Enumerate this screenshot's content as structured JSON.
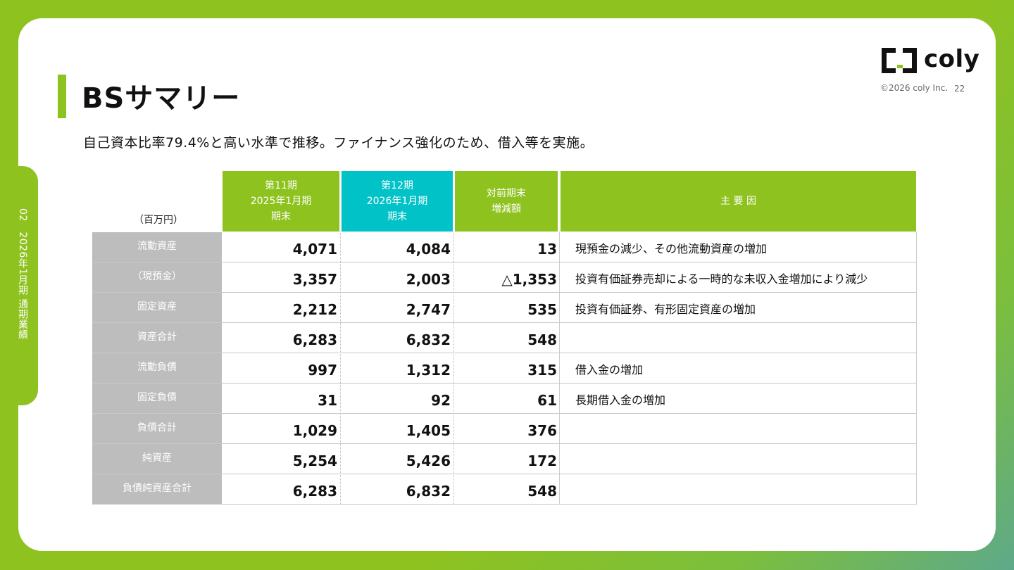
{
  "header": {
    "title": "BSサマリー",
    "subtitle": "自己資本比率79.4%と高い水準で推移。ファイナンス強化のため、借入等を実施。"
  },
  "side_label": "02　2026年1月期 通期業績",
  "brand": {
    "logo_text": "coly",
    "copyright": "©2026 coly Inc.",
    "page_number": "22"
  },
  "colors": {
    "accent_green": "#8ec21f",
    "accent_teal": "#00c2c7",
    "row_label_gray": "#bdbdbd"
  },
  "table": {
    "unit_label": "（百万円）",
    "headers": {
      "period11": [
        "第11期",
        "2025年1月期",
        "期末"
      ],
      "period12": [
        "第12期",
        "2026年1月期",
        "期末"
      ],
      "change": [
        "対前期末",
        "増減額"
      ],
      "reason": "主 要 因"
    },
    "rows": [
      {
        "label": "流動資産",
        "p11": "4,071",
        "p12": "4,084",
        "change": "13",
        "reason": "現預金の減少、その他流動資産の増加"
      },
      {
        "label": "（現預金）",
        "p11": "3,357",
        "p12": "2,003",
        "change": "△1,353",
        "reason": "投資有価証券売却による一時的な未収入金増加により減少"
      },
      {
        "label": "固定資産",
        "p11": "2,212",
        "p12": "2,747",
        "change": "535",
        "reason": "投資有価証券、有形固定資産の増加"
      },
      {
        "label": "資産合計",
        "p11": "6,283",
        "p12": "6,832",
        "change": "548",
        "reason": ""
      },
      {
        "label": "流動負債",
        "p11": "997",
        "p12": "1,312",
        "change": "315",
        "reason": "借入金の増加"
      },
      {
        "label": "固定負債",
        "p11": "31",
        "p12": "92",
        "change": "61",
        "reason": "長期借入金の増加"
      },
      {
        "label": "負債合計",
        "p11": "1,029",
        "p12": "1,405",
        "change": "376",
        "reason": ""
      },
      {
        "label": "純資産",
        "p11": "5,254",
        "p12": "5,426",
        "change": "172",
        "reason": ""
      },
      {
        "label": "負債純資産合計",
        "p11": "6,283",
        "p12": "6,832",
        "change": "548",
        "reason": ""
      }
    ]
  }
}
